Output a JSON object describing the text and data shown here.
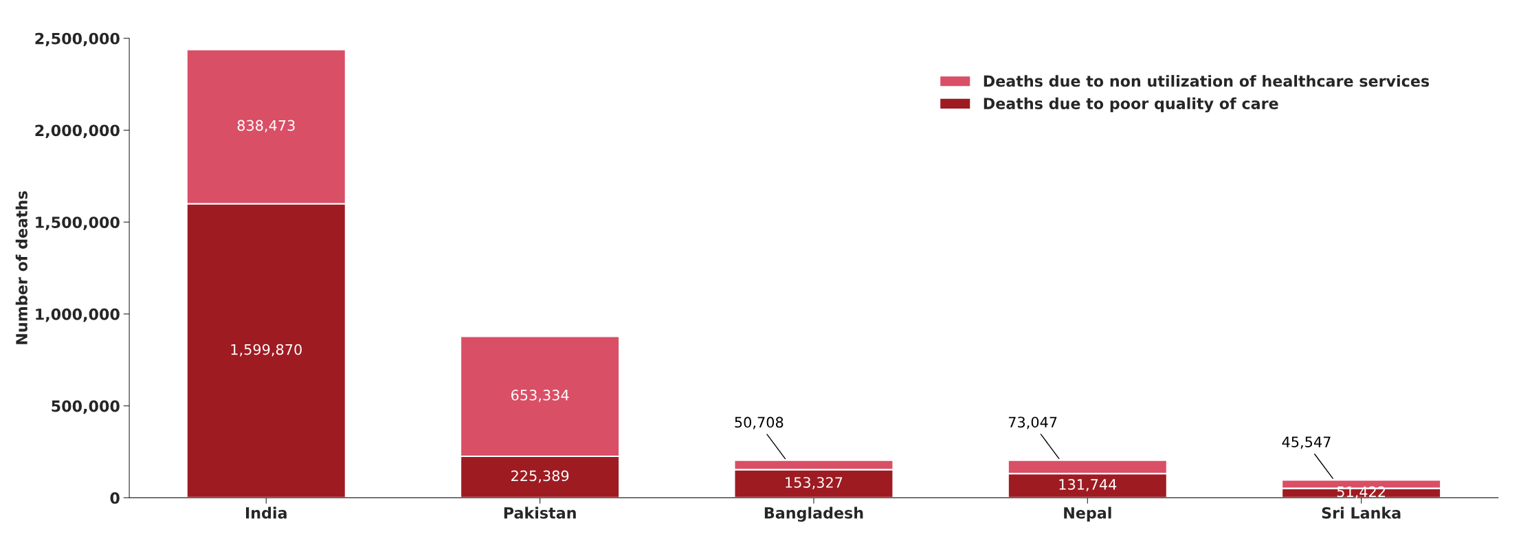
{
  "chart_data": {
    "type": "bar",
    "stacked": true,
    "ylabel": "Number of deaths",
    "categories": [
      "India",
      "Pakistan",
      "Bangladesh",
      "Nepal",
      "Sri Lanka"
    ],
    "series": [
      {
        "name": "Deaths due to poor quality of care",
        "color": "#9e1b22",
        "values": [
          1599870,
          225389,
          153327,
          131744,
          51422
        ],
        "value_labels": [
          "1,599,870",
          "225,389",
          "153,327",
          "131,744",
          "51,422"
        ]
      },
      {
        "name": "Deaths due to non utilization of healthcare services",
        "color": "#d94f66",
        "values": [
          838473,
          653334,
          50708,
          73047,
          45547
        ],
        "value_labels": [
          "838,473",
          "653,334",
          "50,708",
          "73,047",
          "45,547"
        ]
      }
    ],
    "ylim": [
      0,
      2500000
    ],
    "yticks": [
      {
        "value": 0,
        "label": "0"
      },
      {
        "value": 500000,
        "label": "500,000"
      },
      {
        "value": 1000000,
        "label": "1,000,000"
      },
      {
        "value": 1500000,
        "label": "1,500,000"
      },
      {
        "value": 2000000,
        "label": "2,000,000"
      },
      {
        "value": 2500000,
        "label": "2,500,000"
      }
    ],
    "grid": false,
    "legend": "top right"
  }
}
